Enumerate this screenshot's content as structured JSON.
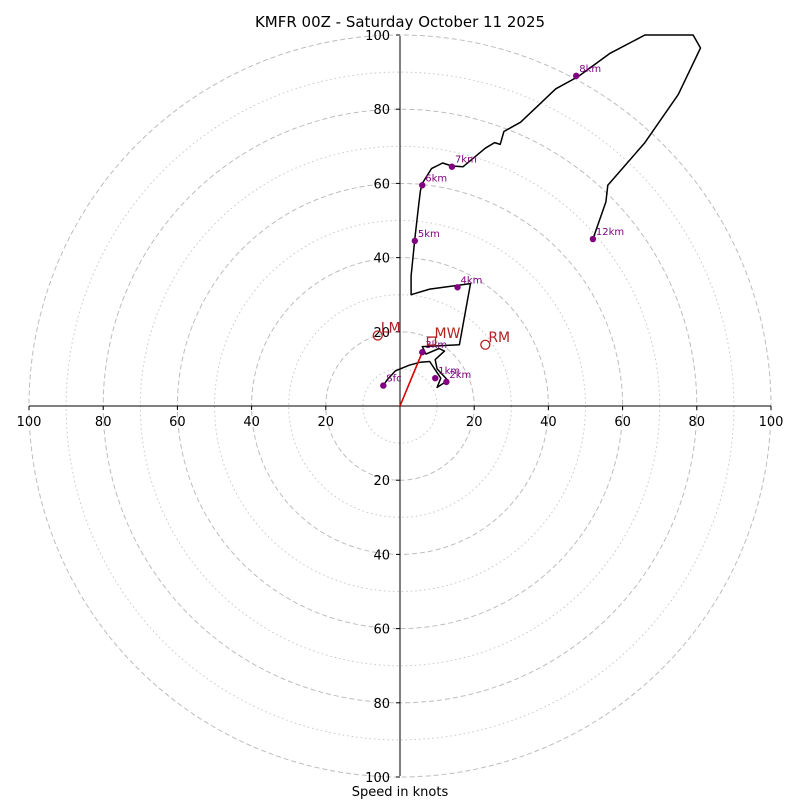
{
  "chart_data": {
    "type": "hodograph",
    "title": "KMFR 00Z - Saturday October 11 2025",
    "xlabel": "Speed in knots",
    "range": [
      -100,
      100
    ],
    "rings": {
      "major": [
        20,
        40,
        60,
        80,
        100
      ],
      "minor": [
        10,
        30,
        50,
        70,
        90
      ],
      "style_major": "dashed",
      "style_minor": "dotted"
    },
    "x_ticks": [
      {
        "value": -100,
        "label": "100"
      },
      {
        "value": -80,
        "label": "80"
      },
      {
        "value": -60,
        "label": "60"
      },
      {
        "value": -40,
        "label": "40"
      },
      {
        "value": -20,
        "label": "20"
      },
      {
        "value": 20,
        "label": "20"
      },
      {
        "value": 40,
        "label": "40"
      },
      {
        "value": 60,
        "label": "60"
      },
      {
        "value": 80,
        "label": "80"
      },
      {
        "value": 100,
        "label": "100"
      }
    ],
    "y_ticks": [
      {
        "value": 100,
        "label": "100"
      },
      {
        "value": 80,
        "label": "80"
      },
      {
        "value": 60,
        "label": "60"
      },
      {
        "value": 40,
        "label": "40"
      },
      {
        "value": 20,
        "label": "20"
      },
      {
        "value": -20,
        "label": "20"
      },
      {
        "value": -40,
        "label": "40"
      },
      {
        "value": -60,
        "label": "60"
      },
      {
        "value": -80,
        "label": "80"
      },
      {
        "value": -100,
        "label": "100"
      }
    ],
    "trace": {
      "color": "#000000",
      "u": [
        -4.5,
        -3.5,
        -1.2,
        2.5,
        5.5,
        8.0,
        11.0,
        10.0,
        12.0,
        12.8,
        10.0,
        9.5,
        12.0,
        10.5,
        7.0,
        6.0,
        16.0,
        19.0,
        8.0,
        3.0,
        3.0,
        4.0,
        5.0,
        5.5,
        6.0,
        8.5,
        11.5,
        14.0,
        17.0,
        23.0,
        25.5,
        27.0,
        28.0,
        32.5,
        42.0,
        48.0,
        56.5,
        66.0,
        79.0,
        81.0,
        75.0,
        66.0,
        56.0,
        55.5,
        52.0
      ],
      "v": [
        5.5,
        7.0,
        9.5,
        11.0,
        11.8,
        12.0,
        7.5,
        5.0,
        6.3,
        7.0,
        10.0,
        12.5,
        14.8,
        15.5,
        14.0,
        16.0,
        16.5,
        33.0,
        31.5,
        30.0,
        35.0,
        45.0,
        54.0,
        58.0,
        60.0,
        64.0,
        65.5,
        64.7,
        64.5,
        69.5,
        71.0,
        70.5,
        74.0,
        76.5,
        85.5,
        88.8,
        95.0,
        100.0,
        100.0,
        96.5,
        84.0,
        71.0,
        59.5,
        55.0,
        45.0
      ]
    },
    "height_markers": [
      {
        "label": "Sfc",
        "u": -4.5,
        "v": 5.5
      },
      {
        "label": "1km",
        "u": 9.5,
        "v": 7.5
      },
      {
        "label": "2km",
        "u": 12.5,
        "v": 6.5
      },
      {
        "label": "3km",
        "u": 6.0,
        "v": 14.5
      },
      {
        "label": "4km",
        "u": 15.5,
        "v": 32.0
      },
      {
        "label": "5km",
        "u": 4.0,
        "v": 44.5
      },
      {
        "label": "6km",
        "u": 6.0,
        "v": 59.5
      },
      {
        "label": "7km",
        "u": 14.0,
        "v": 64.5
      },
      {
        "label": "8km",
        "u": 47.5,
        "v": 89.0
      },
      {
        "label": "12km",
        "u": 52.0,
        "v": 45.0
      }
    ],
    "marker_color": "#800080",
    "shear_vector": {
      "from_u": 0,
      "from_v": 0,
      "to_u": 6.0,
      "to_v": 14.5,
      "color": "#dd0000"
    },
    "storm_motion": {
      "color": "#b22222",
      "points": [
        {
          "label": "LM",
          "u": -6.0,
          "v": 19.0,
          "marker": "circle"
        },
        {
          "label": "MW",
          "u": 8.5,
          "v": 17.5,
          "marker": "square"
        },
        {
          "label": "RM",
          "u": 23.0,
          "v": 16.5,
          "marker": "circle"
        }
      ]
    }
  }
}
